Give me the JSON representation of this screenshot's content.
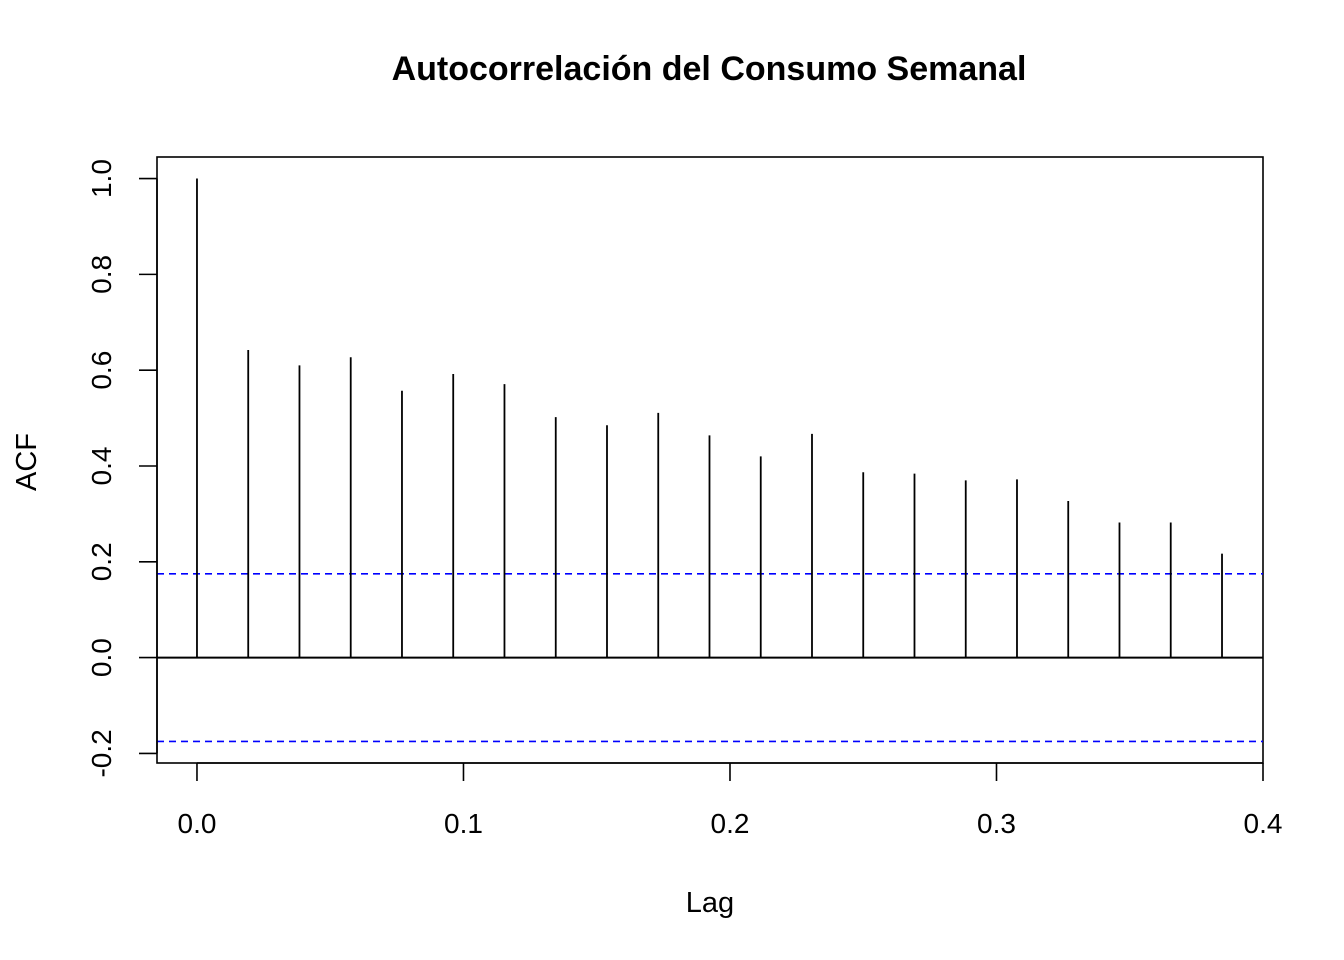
{
  "chart_data": {
    "type": "bar",
    "subtype": "acf-stem",
    "title": "Autocorrelación del Consumo Semanal",
    "xlabel": "Lag",
    "ylabel": "ACF",
    "xlim": [
      -0.015,
      0.4
    ],
    "ylim": [
      -0.22,
      1.045
    ],
    "x_ticks": [
      "0.0",
      "0.1",
      "0.2",
      "0.3",
      "0.4"
    ],
    "y_ticks": [
      "-0.2",
      "0.0",
      "0.2",
      "0.4",
      "0.6",
      "0.8",
      "1.0"
    ],
    "grid": false,
    "legend": "none",
    "confidence_bound": 0.175,
    "colors": {
      "bars": "#000000",
      "confidence_lines": "#0000ff",
      "frame": "#000000"
    },
    "series": [
      {
        "x": [
          0.0,
          0.01923,
          0.03846,
          0.05769,
          0.07692,
          0.09615,
          0.11538,
          0.13462,
          0.15385,
          0.17308,
          0.19231,
          0.21154,
          0.23077,
          0.25,
          0.26923,
          0.28846,
          0.30769,
          0.32692,
          0.34615,
          0.36538,
          0.38462
        ],
        "values": [
          1.0,
          0.642,
          0.61,
          0.627,
          0.557,
          0.592,
          0.571,
          0.502,
          0.485,
          0.511,
          0.464,
          0.42,
          0.467,
          0.387,
          0.384,
          0.37,
          0.372,
          0.327,
          0.282,
          0.282,
          0.217
        ]
      }
    ]
  }
}
